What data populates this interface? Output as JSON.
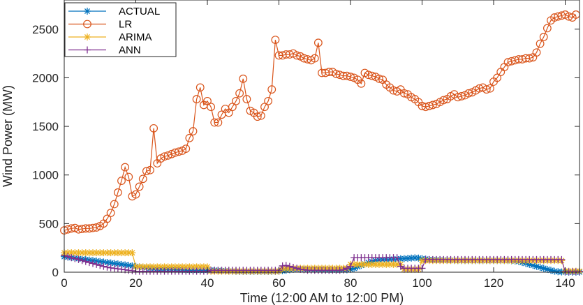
{
  "chart_data": {
    "type": "line",
    "title": "",
    "xlabel": "Time (12:00 AM to 12:00 PM)",
    "ylabel": "Wind Power (MW)",
    "xlim": [
      0,
      144
    ],
    "ylim": [
      0,
      2800
    ],
    "x_ticks": [
      0,
      20,
      40,
      60,
      80,
      100,
      120,
      140
    ],
    "y_ticks": [
      0,
      500,
      1000,
      1500,
      2000,
      2500
    ],
    "legend_position": "top-left",
    "series": [
      {
        "name": "ACTUAL",
        "color": "#0072BD",
        "marker": "asterisk",
        "values": [
          160,
          155,
          150,
          145,
          140,
          135,
          130,
          125,
          120,
          115,
          110,
          105,
          100,
          95,
          90,
          85,
          80,
          75,
          70,
          65,
          60,
          55,
          50,
          45,
          40,
          35,
          32,
          30,
          28,
          26,
          25,
          24,
          23,
          22,
          21,
          20,
          20,
          20,
          20,
          20,
          20,
          20,
          20,
          18,
          16,
          14,
          12,
          10,
          9,
          8,
          8,
          8,
          8,
          8,
          8,
          8,
          8,
          8,
          8,
          8,
          10,
          15,
          20,
          25,
          30,
          32,
          33,
          32,
          30,
          28,
          26,
          25,
          24,
          23,
          22,
          22,
          22,
          22,
          23,
          25,
          30,
          40,
          55,
          70,
          85,
          100,
          110,
          120,
          125,
          128,
          130,
          132,
          134,
          136,
          138,
          140,
          142,
          145,
          148,
          145,
          140,
          135,
          130,
          128,
          126,
          125,
          124,
          123,
          122,
          121,
          120,
          120,
          120,
          120,
          120,
          120,
          120,
          120,
          120,
          120,
          120,
          120,
          120,
          120,
          120,
          118,
          115,
          110,
          100,
          90,
          80,
          70,
          60,
          50,
          40,
          30,
          20,
          10,
          5,
          3,
          2,
          1,
          1,
          1,
          1
        ]
      },
      {
        "name": "LR",
        "color": "#D95319",
        "marker": "circle",
        "values": [
          430,
          440,
          450,
          455,
          440,
          445,
          450,
          450,
          455,
          460,
          475,
          500,
          550,
          610,
          700,
          820,
          940,
          1080,
          980,
          780,
          800,
          880,
          960,
          1040,
          1050,
          1480,
          1120,
          1170,
          1190,
          1200,
          1215,
          1230,
          1240,
          1250,
          1270,
          1380,
          1450,
          1780,
          1900,
          1720,
          1760,
          1700,
          1540,
          1540,
          1620,
          1680,
          1640,
          1700,
          1760,
          1840,
          1990,
          1780,
          1660,
          1640,
          1600,
          1610,
          1700,
          1760,
          1880,
          2390,
          2230,
          2230,
          2240,
          2240,
          2250,
          2230,
          2220,
          2200,
          2190,
          2180,
          2200,
          2360,
          2050,
          2050,
          2060,
          2060,
          2040,
          2030,
          2020,
          2020,
          2010,
          2000,
          1980,
          1940,
          2050,
          2030,
          2020,
          2010,
          1990,
          1980,
          1930,
          1900,
          1870,
          1860,
          1880,
          1840,
          1830,
          1800,
          1780,
          1750,
          1710,
          1700,
          1710,
          1720,
          1730,
          1750,
          1770,
          1780,
          1810,
          1830,
          1800,
          1810,
          1820,
          1840,
          1850,
          1870,
          1890,
          1900,
          1880,
          1890,
          1960,
          2000,
          2060,
          2110,
          2160,
          2170,
          2180,
          2190,
          2190,
          2200,
          2200,
          2210,
          2260,
          2350,
          2420,
          2510,
          2590,
          2620,
          2630,
          2640,
          2650,
          2630,
          2620,
          2650
        ]
      },
      {
        "name": "ARIMA",
        "color": "#EDB120",
        "marker": "asterisk",
        "values": [
          200,
          200,
          200,
          200,
          200,
          200,
          200,
          200,
          200,
          200,
          200,
          200,
          200,
          200,
          200,
          200,
          200,
          200,
          200,
          200,
          55,
          55,
          55,
          55,
          55,
          55,
          55,
          55,
          55,
          55,
          55,
          55,
          55,
          55,
          55,
          55,
          55,
          55,
          55,
          55,
          55,
          10,
          10,
          10,
          10,
          10,
          10,
          10,
          10,
          10,
          10,
          10,
          10,
          10,
          10,
          10,
          10,
          10,
          10,
          10,
          10,
          40,
          40,
          40,
          40,
          40,
          40,
          40,
          40,
          40,
          40,
          40,
          40,
          40,
          40,
          40,
          40,
          40,
          40,
          40,
          80,
          80,
          80,
          80,
          80,
          80,
          80,
          80,
          80,
          80,
          80,
          80,
          80,
          80,
          80,
          30,
          30,
          30,
          30,
          30,
          120,
          120,
          120,
          120,
          120,
          120,
          120,
          120,
          120,
          120,
          120,
          120,
          120,
          120,
          120,
          120,
          120,
          120,
          120,
          120,
          120,
          120,
          120,
          120,
          120,
          120,
          120,
          120,
          120,
          120,
          120,
          120,
          120,
          120,
          120,
          120,
          120,
          120,
          120,
          120,
          10,
          10,
          10,
          10,
          10
        ]
      },
      {
        "name": "ANN",
        "color": "#7E2F8E",
        "marker": "plus",
        "values": [
          170,
          160,
          150,
          140,
          130,
          120,
          110,
          100,
          90,
          80,
          70,
          60,
          52,
          45,
          40,
          35,
          30,
          25,
          20,
          15,
          10,
          10,
          10,
          10,
          10,
          10,
          10,
          10,
          10,
          10,
          10,
          10,
          10,
          10,
          10,
          10,
          10,
          10,
          10,
          10,
          10,
          20,
          20,
          20,
          20,
          20,
          20,
          20,
          20,
          20,
          20,
          20,
          20,
          20,
          20,
          20,
          20,
          20,
          20,
          20,
          20,
          65,
          70,
          60,
          50,
          40,
          30,
          25,
          20,
          20,
          20,
          20,
          20,
          20,
          20,
          20,
          20,
          20,
          25,
          40,
          60,
          150,
          150,
          150,
          150,
          150,
          150,
          150,
          150,
          150,
          150,
          150,
          150,
          150,
          60,
          40,
          40,
          40,
          40,
          40,
          40,
          130,
          130,
          130,
          130,
          130,
          130,
          130,
          130,
          130,
          130,
          130,
          130,
          130,
          130,
          130,
          130,
          130,
          130,
          130,
          130,
          130,
          130,
          130,
          130,
          130,
          130,
          130,
          130,
          130,
          130,
          130,
          130,
          130,
          130,
          130,
          130,
          130,
          130,
          130,
          5,
          5,
          5,
          5,
          5
        ]
      }
    ]
  }
}
